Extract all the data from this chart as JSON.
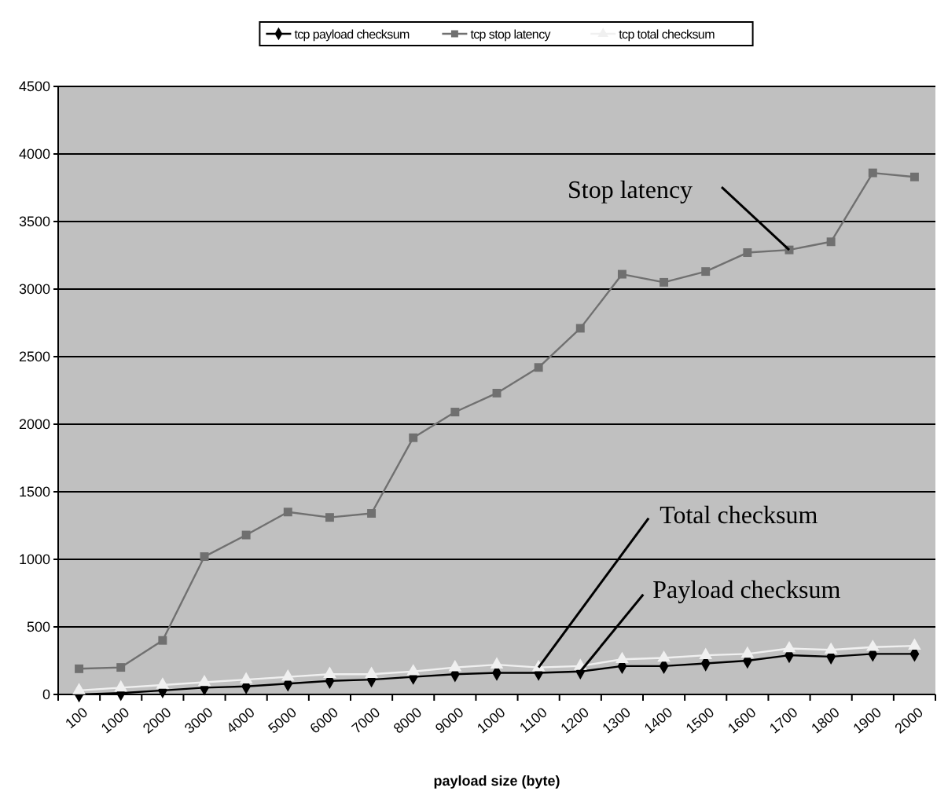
{
  "chart_data": {
    "type": "line",
    "xlabel": "payload size (byte)",
    "categories": [
      "100",
      "1000",
      "2000",
      "3000",
      "4000",
      "5000",
      "6000",
      "7000",
      "8000",
      "9000",
      "1000",
      "1100",
      "1200",
      "1300",
      "1400",
      "1500",
      "1600",
      "1700",
      "1800",
      "1900",
      "2000"
    ],
    "series": [
      {
        "name": "tcp payload checksum",
        "color": "#000000",
        "marker": "diamond",
        "values": [
          0,
          10,
          30,
          50,
          60,
          80,
          100,
          110,
          130,
          150,
          160,
          160,
          170,
          210,
          210,
          230,
          250,
          290,
          280,
          300,
          300
        ]
      },
      {
        "name": "tcp stop latency",
        "color": "#707070",
        "marker": "square",
        "values": [
          190,
          200,
          400,
          1020,
          1180,
          1350,
          1310,
          1340,
          1900,
          2090,
          2230,
          2420,
          2710,
          3110,
          3050,
          3130,
          3270,
          3290,
          3350,
          3860,
          3830
        ]
      },
      {
        "name": "tcp total checksum",
        "color": "#f0f0f0",
        "marker": "triangle",
        "values": [
          30,
          50,
          70,
          90,
          110,
          130,
          150,
          150,
          170,
          200,
          220,
          200,
          210,
          260,
          270,
          290,
          300,
          340,
          330,
          350,
          360
        ]
      }
    ],
    "ylim": [
      0,
      4500
    ],
    "yticks": [
      0,
      500,
      1000,
      1500,
      2000,
      2500,
      3000,
      3500,
      4000,
      4500
    ],
    "grid": "y",
    "legend": "top",
    "annotations": [
      {
        "text": "Stop latency",
        "x": "1700",
        "y": 3290
      },
      {
        "text": "Total checksum",
        "x": "1100",
        "y": 200
      },
      {
        "text": "Payload checksum",
        "x": "1200",
        "y": 170
      }
    ]
  }
}
